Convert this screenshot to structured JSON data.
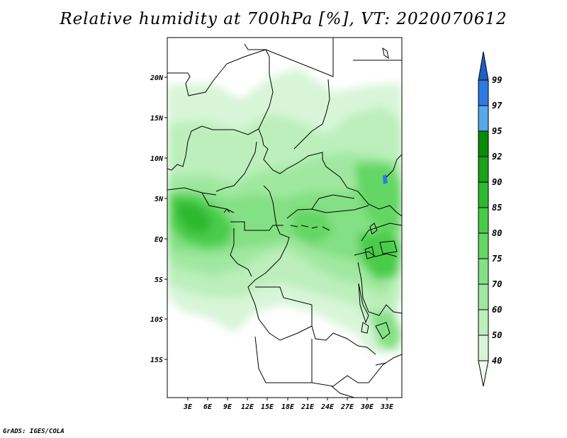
{
  "title": "Relative humidity at 700hPa [%], VT: 2020070612",
  "credit": "GrADS: IGES/COLA",
  "map": {
    "lat_labels": [
      "20N",
      "15N",
      "10N",
      "5N",
      "EQ",
      "5S",
      "10S",
      "15S"
    ],
    "lon_labels": [
      "3E",
      "6E",
      "9E",
      "12E",
      "15E",
      "18E",
      "21E",
      "24E",
      "27E",
      "30E",
      "33E"
    ]
  },
  "colorbar": {
    "levels": [
      "40",
      "50",
      "60",
      "70",
      "75",
      "80",
      "85",
      "90",
      "92",
      "95",
      "97",
      "99"
    ],
    "colors": [
      "#f0fcf0",
      "#d8f5d8",
      "#bcefbc",
      "#a0e8a0",
      "#84e084",
      "#64d664",
      "#48cc48",
      "#2eb82e",
      "#18a318",
      "#0a8c0a",
      "#58a8ec",
      "#2e7ae0",
      "#1f5fc2"
    ]
  }
}
